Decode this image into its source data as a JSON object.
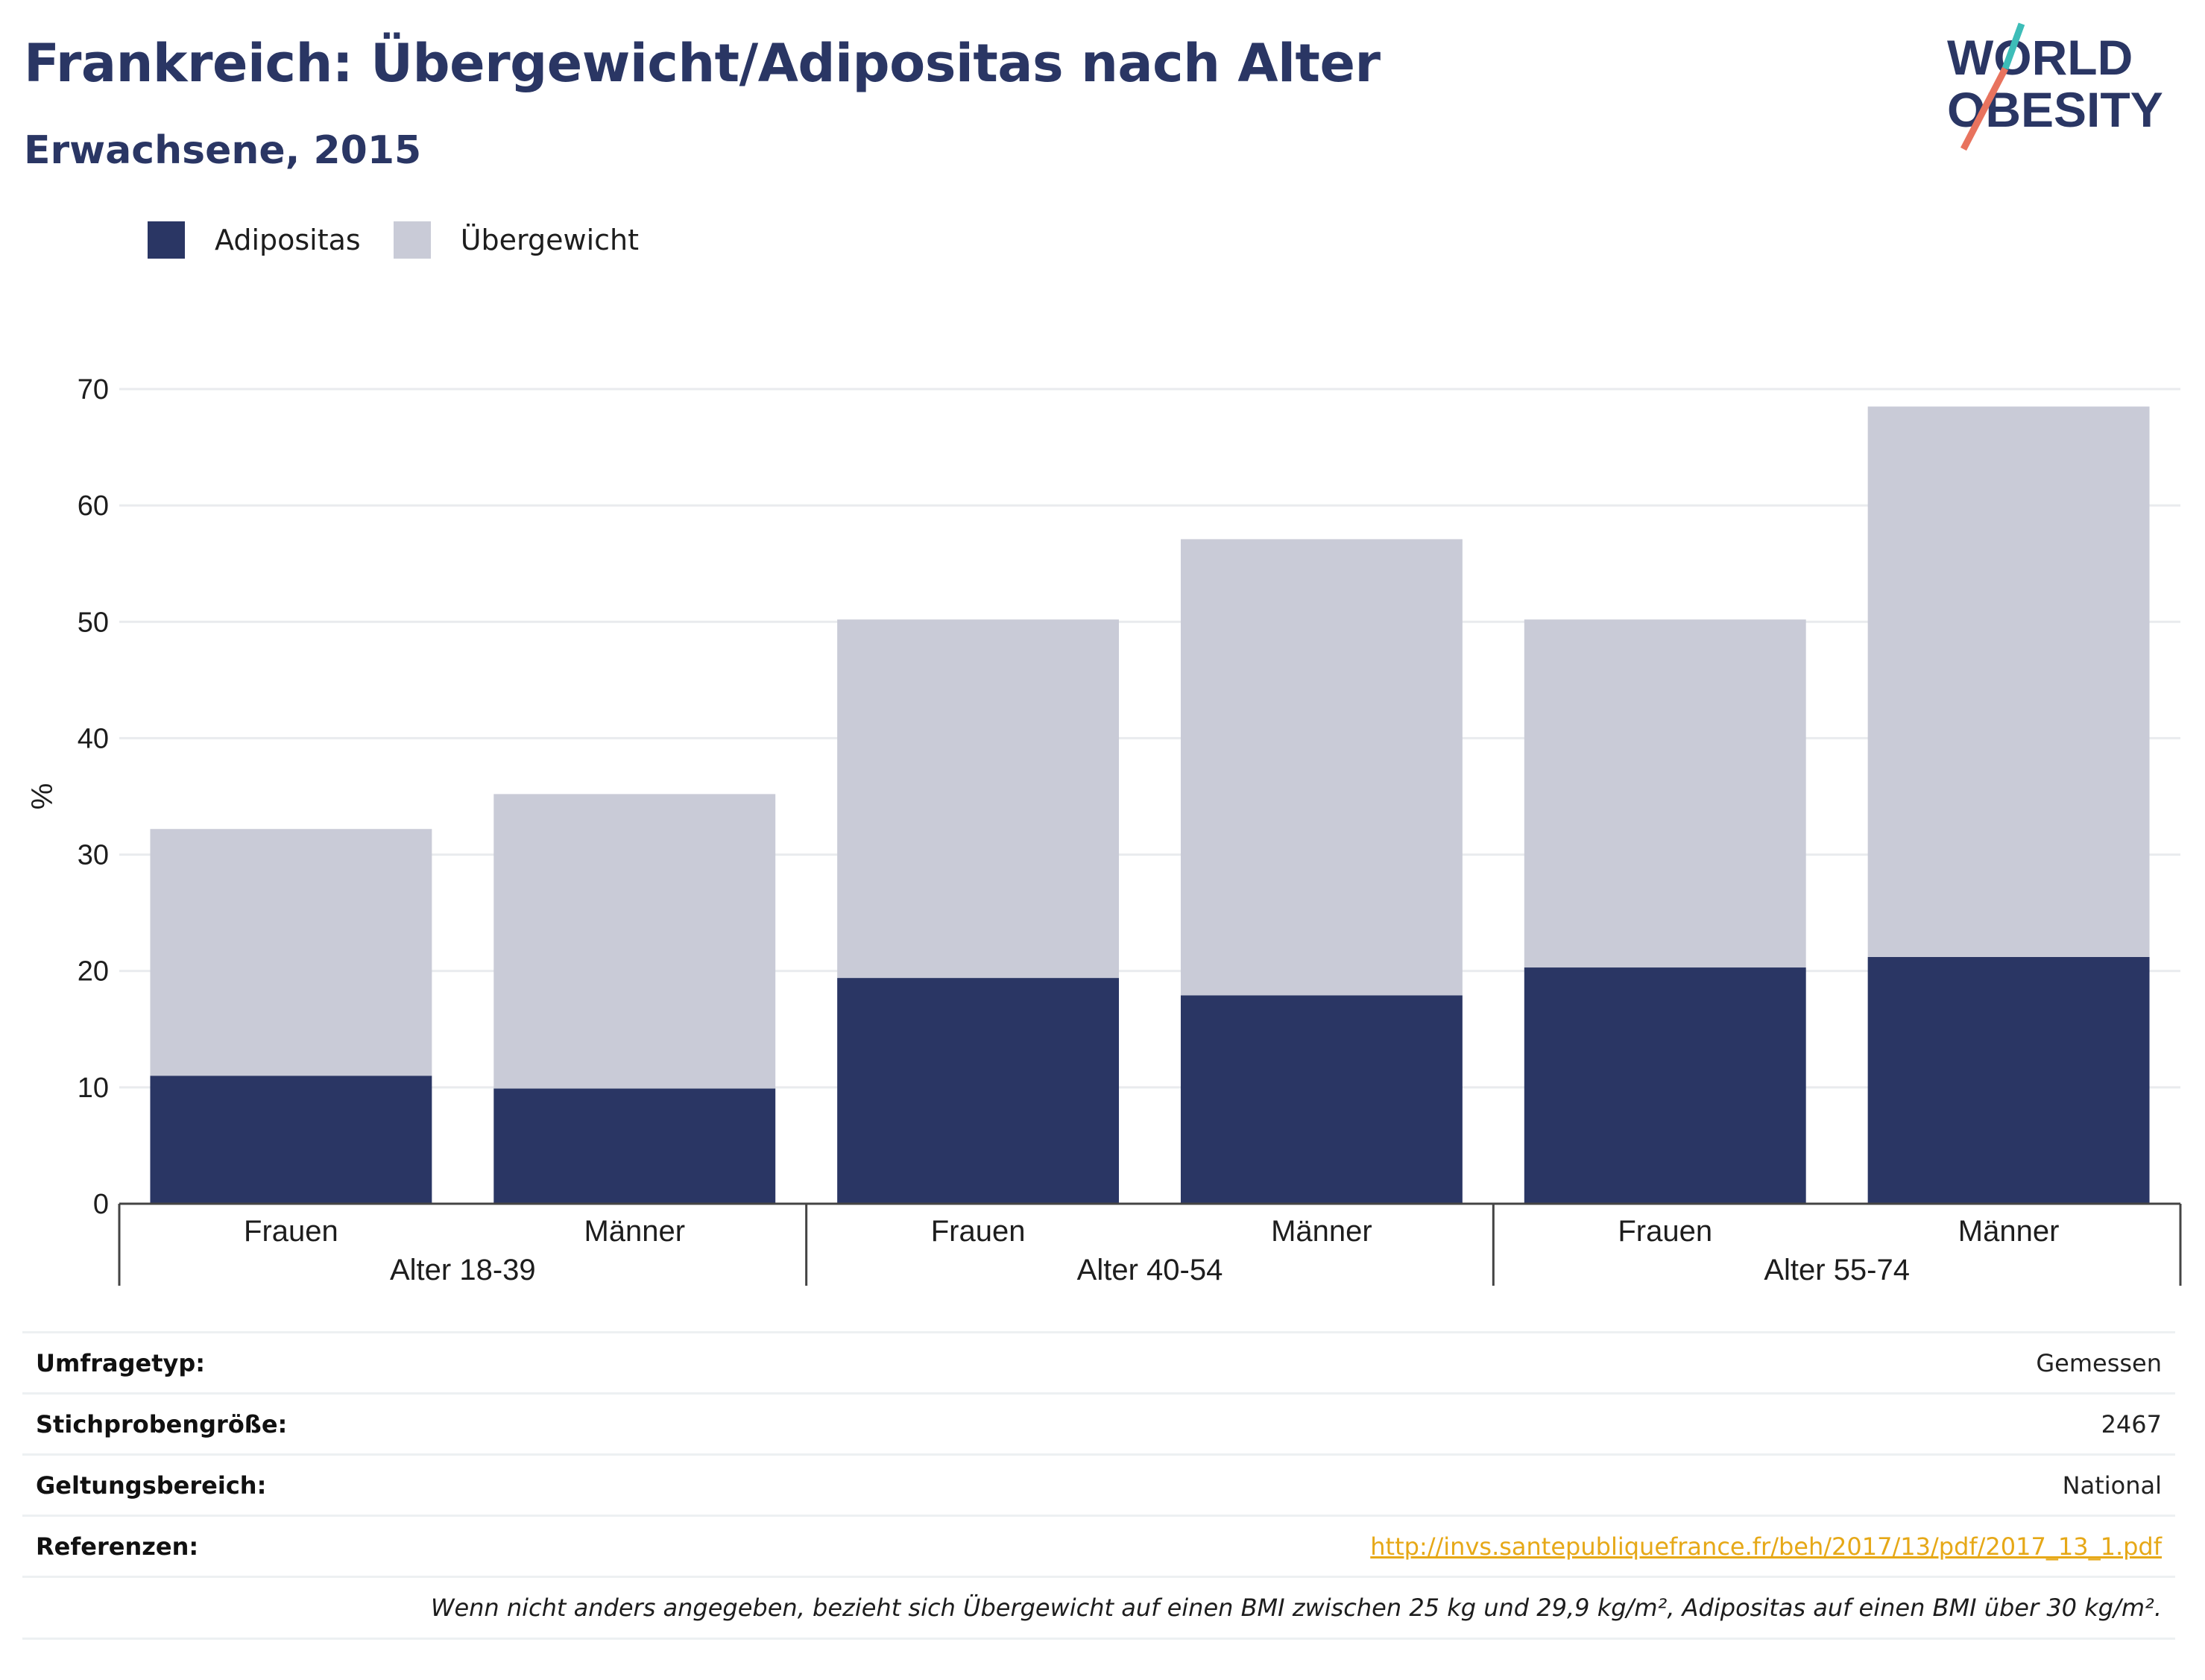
{
  "header": {
    "title": "Frankreich: Übergewicht/Adipositas nach Alter",
    "subtitle": "Erwachsene, 2015"
  },
  "logo": {
    "line1": "WORLD",
    "line2": "OBESITY"
  },
  "legend": [
    {
      "label": "Adipositas",
      "color": "#2a3664"
    },
    {
      "label": "Übergewicht",
      "color": "#c9cbd7"
    }
  ],
  "chart_data": {
    "type": "bar",
    "stacked": true,
    "categories": [
      "Frauen",
      "Männer",
      "Frauen",
      "Männer",
      "Frauen",
      "Männer"
    ],
    "groups": [
      {
        "label": "Alter 18-39",
        "span": 2
      },
      {
        "label": "Alter 40-54",
        "span": 2
      },
      {
        "label": "Alter 55-74",
        "span": 2
      }
    ],
    "series": [
      {
        "name": "Adipositas",
        "color": "#2a3664",
        "values": [
          11.0,
          9.9,
          19.4,
          17.9,
          20.3,
          21.2
        ]
      },
      {
        "name": "Übergewicht",
        "color": "#c9cbd7",
        "values": [
          21.2,
          25.3,
          30.8,
          39.2,
          29.9,
          47.3
        ]
      }
    ],
    "ylabel": "%",
    "ylim": [
      0,
      70
    ],
    "yticks": [
      0,
      10,
      20,
      30,
      40,
      50,
      60,
      70
    ],
    "grid": true
  },
  "info": {
    "rows": [
      {
        "key": "Umfragetyp:",
        "value": "Gemessen"
      },
      {
        "key": "Stichprobengröße:",
        "value": "2467"
      },
      {
        "key": "Geltungsbereich:",
        "value": "National"
      },
      {
        "key": "Referenzen:",
        "value": "http://invs.santepubliquefrance.fr/beh/2017/13/pdf/2017_13_1.pdf"
      }
    ],
    "note": "Wenn nicht anders angegeben, bezieht sich Übergewicht auf einen BMI zwischen 25 kg und 29,9 kg/m², Adipositas auf einen BMI über 30 kg/m²."
  }
}
